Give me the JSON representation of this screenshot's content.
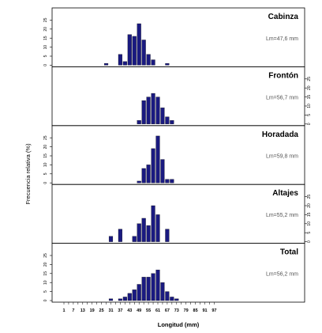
{
  "chart_data": {
    "type": "bar",
    "xlabel": "Longitud (mm)",
    "ylabel": "Frecuencia relativa (%)",
    "x_tick_labels": [
      "1",
      "7",
      "13",
      "19",
      "25",
      "31",
      "37",
      "43",
      "49",
      "55",
      "61",
      "67",
      "73",
      "79",
      "85",
      "91",
      "97"
    ],
    "bins": [
      1,
      4,
      7,
      10,
      13,
      16,
      19,
      22,
      25,
      28,
      31,
      34,
      37,
      40,
      43,
      46,
      49,
      52,
      55,
      58,
      61,
      64,
      67,
      70,
      73,
      76,
      79,
      82,
      85,
      88,
      91,
      94,
      97
    ],
    "ylim": [
      0,
      30
    ],
    "panels": [
      {
        "name": "Cabinza",
        "lm": "Lm=47,6 mm",
        "y_ticks": [
          "0",
          "5",
          "10",
          "15",
          "20",
          "25"
        ],
        "y_axis_side": "left",
        "values": [
          0,
          0,
          0,
          0,
          0,
          0,
          0,
          0,
          0,
          1,
          0,
          0,
          6,
          2,
          17,
          16,
          23,
          14,
          6,
          3,
          0,
          0,
          1,
          0,
          0,
          0,
          0,
          0,
          0,
          0,
          0,
          0,
          0
        ]
      },
      {
        "name": "Frontón",
        "lm": "Lm=56,7 mm",
        "y_ticks": [
          "0",
          "5",
          "10",
          "15",
          "20",
          "25"
        ],
        "y_axis_side": "right",
        "values": [
          0,
          0,
          0,
          0,
          0,
          0,
          0,
          0,
          0,
          0,
          0,
          0,
          0,
          0,
          0,
          0,
          2,
          13,
          15,
          17,
          15,
          9,
          4,
          2,
          0,
          0,
          0,
          0,
          0,
          0,
          0,
          0,
          0
        ]
      },
      {
        "name": "Horadada",
        "lm": "Lm=59,8 mm",
        "y_ticks": [
          "0",
          "5",
          "10",
          "15",
          "20",
          "25"
        ],
        "y_axis_side": "left",
        "values": [
          0,
          0,
          0,
          0,
          0,
          0,
          0,
          0,
          0,
          0,
          0,
          0,
          0,
          0,
          0,
          0,
          1,
          8,
          10,
          19,
          26,
          13,
          2,
          2,
          0,
          0,
          0,
          0,
          0,
          0,
          0,
          0,
          0
        ]
      },
      {
        "name": "Altajes",
        "lm": "Lm=55,2 mm",
        "y_ticks": [
          "0",
          "5",
          "10",
          "15",
          "20",
          "25"
        ],
        "y_axis_side": "right",
        "values": [
          0,
          0,
          0,
          0,
          0,
          0,
          0,
          0,
          0,
          0,
          3,
          0,
          7,
          0,
          0,
          3,
          10,
          13,
          9,
          20,
          15,
          0,
          7,
          0,
          0,
          0,
          0,
          0,
          0,
          0,
          0,
          0,
          0
        ]
      },
      {
        "name": "Total",
        "lm": "Lm=56,2 mm",
        "y_ticks": [
          "0",
          "5",
          "10",
          "15",
          "20",
          "25"
        ],
        "y_axis_side": "left",
        "values": [
          0,
          0,
          0,
          0,
          0,
          0,
          0,
          0,
          0,
          0,
          1,
          0,
          1,
          2,
          4,
          6,
          9,
          13,
          13,
          15,
          17,
          10,
          5,
          2,
          1,
          0,
          0,
          0,
          0,
          0,
          0,
          0,
          0
        ]
      }
    ],
    "bar_color": "#1a1a80",
    "grid": false
  }
}
